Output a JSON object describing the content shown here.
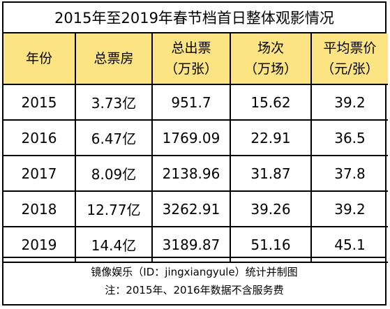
{
  "chart_data": {
    "type": "table",
    "title": "2015年至2019年春节档首日整体观影情况",
    "columns": [
      {
        "line1": "年份",
        "line2": ""
      },
      {
        "line1": "总票房",
        "line2": ""
      },
      {
        "line1": "总出票",
        "line2": "（万张）"
      },
      {
        "line1": "场次",
        "line2": "（万场）"
      },
      {
        "line1": "平均票价",
        "line2": "（元/张）"
      }
    ],
    "rows": [
      [
        "2015",
        "3.73亿",
        "951.7",
        "15.62",
        "39.2"
      ],
      [
        "2016",
        "6.47亿",
        "1769.09",
        "22.91",
        "36.5"
      ],
      [
        "2017",
        "8.09亿",
        "2138.96",
        "31.87",
        "37.8"
      ],
      [
        "2018",
        "12.77亿",
        "3262.91",
        "39.26",
        "39.2"
      ],
      [
        "2019",
        "14.4亿",
        "3189.87",
        "51.16",
        "45.1"
      ]
    ],
    "source": "镜像娱乐（ID：jingxiangyule）统计并制图",
    "note": "注：2015年、2016年数据不含服务费",
    "header_color": "#fbe481"
  }
}
